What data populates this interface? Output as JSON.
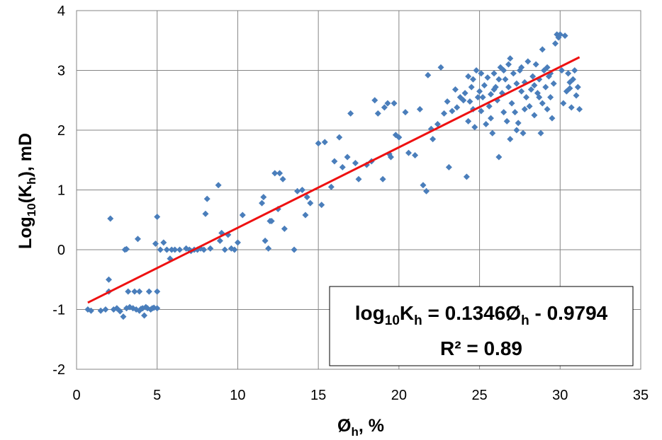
{
  "chart_data": {
    "type": "scatter",
    "title": "",
    "xlabel": {
      "base": "Ø",
      "sub": "h",
      "suffix": ", %"
    },
    "ylabel": {
      "prefix": "Log",
      "sub1": "10",
      "mid": "(K",
      "sub2": "h",
      "suffix": "), mD"
    },
    "xlim": [
      0,
      35
    ],
    "ylim": [
      -2,
      4
    ],
    "xticks": [
      "0",
      "5",
      "10",
      "15",
      "20",
      "25",
      "30",
      "35"
    ],
    "yticks": [
      "-2",
      "-1",
      "0",
      "1",
      "2",
      "3",
      "4"
    ],
    "grid": true,
    "point_color": "#4a7ebb",
    "trend_color": "#ee1111",
    "trendline": {
      "slope": 0.1346,
      "intercept": -0.9794,
      "x_range": [
        0.7,
        31.2
      ]
    },
    "equation": {
      "prefix": "log",
      "sub1": "10",
      "mid": "K",
      "sub2": "h",
      "rhs": " = 0.1346Ø",
      "sub3": "h",
      "tail": " - 0.9794"
    },
    "r2_text": "R² = 0.89",
    "points": [
      [
        0.7,
        -1.0
      ],
      [
        0.9,
        -1.02
      ],
      [
        1.5,
        -1.02
      ],
      [
        1.8,
        -1.0
      ],
      [
        2.0,
        -0.7
      ],
      [
        2.0,
        -0.5
      ],
      [
        2.1,
        0.52
      ],
      [
        2.3,
        -1.0
      ],
      [
        2.5,
        -0.98
      ],
      [
        2.7,
        -1.03
      ],
      [
        2.9,
        -1.12
      ],
      [
        3.0,
        0.0
      ],
      [
        3.1,
        0.01
      ],
      [
        3.1,
        -0.98
      ],
      [
        3.2,
        -0.7
      ],
      [
        3.3,
        -0.96
      ],
      [
        3.5,
        -0.98
      ],
      [
        3.6,
        -0.7
      ],
      [
        3.7,
        -1.0
      ],
      [
        3.8,
        0.18
      ],
      [
        3.9,
        -1.02
      ],
      [
        3.9,
        -0.7
      ],
      [
        4.0,
        -0.99
      ],
      [
        4.1,
        -0.98
      ],
      [
        4.2,
        -1.1
      ],
      [
        4.3,
        -0.96
      ],
      [
        4.4,
        -0.98
      ],
      [
        4.5,
        -0.7
      ],
      [
        4.6,
        -1.0
      ],
      [
        4.7,
        -0.98
      ],
      [
        4.8,
        -0.97
      ],
      [
        4.9,
        0.1
      ],
      [
        5.0,
        0.55
      ],
      [
        5.0,
        -0.7
      ],
      [
        5.0,
        -0.98
      ],
      [
        5.2,
        0.0
      ],
      [
        5.4,
        0.12
      ],
      [
        5.6,
        0.0
      ],
      [
        5.8,
        -0.15
      ],
      [
        5.9,
        0.0
      ],
      [
        6.1,
        0.0
      ],
      [
        6.4,
        0.0
      ],
      [
        6.8,
        0.02
      ],
      [
        7.0,
        0.0
      ],
      [
        7.1,
        -0.02
      ],
      [
        7.3,
        0.0
      ],
      [
        7.5,
        0.0
      ],
      [
        7.7,
        0.02
      ],
      [
        7.9,
        0.0
      ],
      [
        8.0,
        0.6
      ],
      [
        8.1,
        0.85
      ],
      [
        8.3,
        0.02
      ],
      [
        8.8,
        1.08
      ],
      [
        8.9,
        0.15
      ],
      [
        9.0,
        0.28
      ],
      [
        9.2,
        0.0
      ],
      [
        9.4,
        0.25
      ],
      [
        9.6,
        0.02
      ],
      [
        9.8,
        0.0
      ],
      [
        10.0,
        0.12
      ],
      [
        10.3,
        0.58
      ],
      [
        11.5,
        0.78
      ],
      [
        11.6,
        0.88
      ],
      [
        11.7,
        0.15
      ],
      [
        11.9,
        0.02
      ],
      [
        12.0,
        0.48
      ],
      [
        12.1,
        0.48
      ],
      [
        12.3,
        1.28
      ],
      [
        12.5,
        0.68
      ],
      [
        12.6,
        1.28
      ],
      [
        12.8,
        1.18
      ],
      [
        12.9,
        0.35
      ],
      [
        13.5,
        0.0
      ],
      [
        13.7,
        0.98
      ],
      [
        14.0,
        1.0
      ],
      [
        14.2,
        0.58
      ],
      [
        14.3,
        0.88
      ],
      [
        14.5,
        0.78
      ],
      [
        15.0,
        1.78
      ],
      [
        15.2,
        0.75
      ],
      [
        15.4,
        1.8
      ],
      [
        15.8,
        1.05
      ],
      [
        16.0,
        1.48
      ],
      [
        16.3,
        1.88
      ],
      [
        16.5,
        1.38
      ],
      [
        16.8,
        1.55
      ],
      [
        17.0,
        2.28
      ],
      [
        17.3,
        1.45
      ],
      [
        17.5,
        1.18
      ],
      [
        18.0,
        1.42
      ],
      [
        18.3,
        1.48
      ],
      [
        18.5,
        2.5
      ],
      [
        18.7,
        2.28
      ],
      [
        19.0,
        1.18
      ],
      [
        19.1,
        2.38
      ],
      [
        19.3,
        2.45
      ],
      [
        19.4,
        1.6
      ],
      [
        19.5,
        1.55
      ],
      [
        19.7,
        2.45
      ],
      [
        19.8,
        1.92
      ],
      [
        20.0,
        1.88
      ],
      [
        20.4,
        2.3
      ],
      [
        20.6,
        1.62
      ],
      [
        21.0,
        1.58
      ],
      [
        21.3,
        2.35
      ],
      [
        21.5,
        1.08
      ],
      [
        21.7,
        0.98
      ],
      [
        21.8,
        2.92
      ],
      [
        22.0,
        2.02
      ],
      [
        22.1,
        1.85
      ],
      [
        22.4,
        2.1
      ],
      [
        22.6,
        3.05
      ],
      [
        22.8,
        2.28
      ],
      [
        23.0,
        2.48
      ],
      [
        23.1,
        1.38
      ],
      [
        23.3,
        2.32
      ],
      [
        23.5,
        2.68
      ],
      [
        23.6,
        2.38
      ],
      [
        23.8,
        2.55
      ],
      [
        24.0,
        2.5
      ],
      [
        24.1,
        2.62
      ],
      [
        24.2,
        1.22
      ],
      [
        24.3,
        2.15
      ],
      [
        24.4,
        2.48
      ],
      [
        24.5,
        2.72
      ],
      [
        24.6,
        2.85
      ],
      [
        24.7,
        2.05
      ],
      [
        24.8,
        3.0
      ],
      [
        24.9,
        2.55
      ],
      [
        25.0,
        2.65
      ],
      [
        25.1,
        2.32
      ],
      [
        25.2,
        2.55
      ],
      [
        25.3,
        2.75
      ],
      [
        25.4,
        2.1
      ],
      [
        25.5,
        2.88
      ],
      [
        25.6,
        2.4
      ],
      [
        25.7,
        2.6
      ],
      [
        25.8,
        1.95
      ],
      [
        25.9,
        2.95
      ],
      [
        26.0,
        2.72
      ],
      [
        26.1,
        2.5
      ],
      [
        26.2,
        1.55
      ],
      [
        26.3,
        3.05
      ],
      [
        26.4,
        2.62
      ],
      [
        26.5,
        2.3
      ],
      [
        26.6,
        2.85
      ],
      [
        26.7,
        2.15
      ],
      [
        26.8,
        2.72
      ],
      [
        26.9,
        3.2
      ],
      [
        27.0,
        2.45
      ],
      [
        27.1,
        2.95
      ],
      [
        27.2,
        2.3
      ],
      [
        27.3,
        2.78
      ],
      [
        27.4,
        2.12
      ],
      [
        27.5,
        3.0
      ],
      [
        27.6,
        2.65
      ],
      [
        27.7,
        1.95
      ],
      [
        27.8,
        2.8
      ],
      [
        27.9,
        2.55
      ],
      [
        28.0,
        3.15
      ],
      [
        28.1,
        2.4
      ],
      [
        28.2,
        2.68
      ],
      [
        28.3,
        2.9
      ],
      [
        28.4,
        2.25
      ],
      [
        28.5,
        3.1
      ],
      [
        28.6,
        2.62
      ],
      [
        28.7,
        2.85
      ],
      [
        28.8,
        1.95
      ],
      [
        28.9,
        2.45
      ],
      [
        29.0,
        3.0
      ],
      [
        29.1,
        2.72
      ],
      [
        29.2,
        2.35
      ],
      [
        29.3,
        2.9
      ],
      [
        29.4,
        2.55
      ],
      [
        29.5,
        2.2
      ],
      [
        29.6,
        2.78
      ],
      [
        29.7,
        3.45
      ],
      [
        29.8,
        3.6
      ],
      [
        29.9,
        3.55
      ],
      [
        30.0,
        3.6
      ],
      [
        30.1,
        3.0
      ],
      [
        30.2,
        2.45
      ],
      [
        30.3,
        3.58
      ],
      [
        30.4,
        2.65
      ],
      [
        30.5,
        2.95
      ],
      [
        30.6,
        2.8
      ],
      [
        30.7,
        2.38
      ],
      [
        30.8,
        2.85
      ],
      [
        30.9,
        3.0
      ],
      [
        31.0,
        2.58
      ],
      [
        31.1,
        2.72
      ],
      [
        31.2,
        2.35
      ],
      [
        24.3,
        2.9
      ],
      [
        25.1,
        2.95
      ],
      [
        25.7,
        2.2
      ],
      [
        26.2,
        2.85
      ],
      [
        26.8,
        3.1
      ],
      [
        27.3,
        2.0
      ],
      [
        27.8,
        2.35
      ],
      [
        28.4,
        2.75
      ],
      [
        28.9,
        3.35
      ],
      [
        29.4,
        2.95
      ],
      [
        26.5,
        3.0
      ],
      [
        25.9,
        2.68
      ],
      [
        27.6,
        3.05
      ],
      [
        28.7,
        2.55
      ],
      [
        26.9,
        1.85
      ],
      [
        29.2,
        3.05
      ],
      [
        30.6,
        2.7
      ],
      [
        24.6,
        2.35
      ]
    ]
  }
}
